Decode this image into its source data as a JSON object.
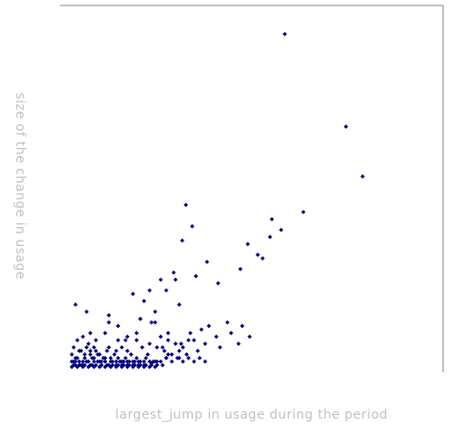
{
  "chart_data": {
    "type": "scatter",
    "title": "",
    "xlabel": "largest_jump in usage during the period",
    "ylabel": "size of the change in usage",
    "xlim": [
      0,
      1
    ],
    "ylim": [
      0,
      1
    ],
    "grid": false,
    "legend": "none",
    "colors": {
      "points": "#00007f",
      "frame": "#808080",
      "axis_text": "#c0c0c0"
    },
    "series": [
      {
        "x": [
          0.585,
          0.75,
          0.795,
          0.635,
          0.55,
          0.545,
          0.512,
          0.485,
          0.318,
          0.335,
          0.308,
          0.285,
          0.265,
          0.25,
          0.22,
          0.205,
          0.195,
          0.235,
          0.11,
          0.05,
          0.02,
          0.175,
          0.29,
          0.405,
          0.465,
          0.375,
          0.345,
          0.525,
          0.575,
          0.3,
          0.235,
          0.225,
          0.195,
          0.185,
          0.185,
          0.16,
          0.155,
          0.27,
          0.305,
          0.325,
          0.3,
          0.27,
          0.265,
          0.255,
          0.24,
          0.225,
          0.215,
          0.16,
          0.145,
          0.135,
          0.135,
          0.13,
          0.11,
          0.1,
          0.11,
          0.1,
          0.09,
          0.08,
          0.075,
          0.07,
          0.065,
          0.06,
          0.06,
          0.055,
          0.05,
          0.045,
          0.04,
          0.035,
          0.03,
          0.025,
          0.02,
          0.015,
          0.015,
          0.01,
          0.02,
          0.025,
          0.03,
          0.035,
          0.04,
          0.045,
          0.05,
          0.055,
          0.06,
          0.065,
          0.07,
          0.075,
          0.08,
          0.085,
          0.09,
          0.095,
          0.1,
          0.105,
          0.11,
          0.115,
          0.12,
          0.125,
          0.13,
          0.135,
          0.14,
          0.145,
          0.15,
          0.155,
          0.16,
          0.165,
          0.17,
          0.175,
          0.18,
          0.185,
          0.19,
          0.195,
          0.2,
          0.205,
          0.21,
          0.22,
          0.23,
          0.24,
          0.25,
          0.26,
          0.27,
          0.28,
          0.29,
          0.3,
          0.31,
          0.32,
          0.33,
          0.34,
          0.35,
          0.36,
          0.37,
          0.38,
          0.4,
          0.41,
          0.43,
          0.44,
          0.46,
          0.47,
          0.49,
          0.015,
          0.03,
          0.045,
          0.06,
          0.075,
          0.09,
          0.105,
          0.12,
          0.135,
          0.15,
          0.165,
          0.18,
          0.195,
          0.21,
          0.225,
          0.24,
          0.255,
          0.01,
          0.02,
          0.04,
          0.05,
          0.07,
          0.085,
          0.1,
          0.115,
          0.13,
          0.145,
          0.16,
          0.175,
          0.19,
          0.205,
          0.22,
          0.235,
          0.25,
          0.265,
          0.28,
          0.295,
          0.31,
          0.325,
          0.34,
          0.355,
          0.37,
          0.01,
          0.025,
          0.04,
          0.055,
          0.07,
          0.085,
          0.1,
          0.115,
          0.13,
          0.145,
          0.16,
          0.175,
          0.19,
          0.205,
          0.22,
          0.235
        ],
        "y": [
          0.94,
          0.68,
          0.54,
          0.44,
          0.42,
          0.37,
          0.32,
          0.35,
          0.46,
          0.4,
          0.36,
          0.27,
          0.22,
          0.25,
          0.22,
          0.19,
          0.14,
          0.13,
          0.13,
          0.16,
          0.18,
          0.21,
          0.25,
          0.24,
          0.28,
          0.3,
          0.26,
          0.31,
          0.39,
          0.18,
          0.16,
          0.13,
          0.14,
          0.1,
          0.08,
          0.09,
          0.08,
          0.1,
          0.07,
          0.08,
          0.05,
          0.04,
          0.03,
          0.06,
          0.02,
          0.015,
          0.04,
          0.05,
          0.06,
          0.08,
          0.12,
          0.05,
          0.06,
          0.1,
          0.15,
          0.03,
          0.02,
          0.04,
          0.08,
          0.06,
          0.03,
          0.05,
          0.1,
          0.07,
          0.02,
          0.04,
          0.09,
          0.01,
          0.05,
          0.08,
          0.03,
          0.02,
          0.06,
          0.04,
          0.01,
          0.03,
          0.02,
          0.05,
          0.01,
          0.03,
          0.06,
          0.02,
          0.04,
          0.01,
          0.03,
          0.05,
          0.02,
          0.04,
          0.01,
          0.03,
          0.02,
          0.05,
          0.01,
          0.03,
          0.02,
          0.04,
          0.01,
          0.03,
          0.02,
          0.01,
          0.02,
          0.03,
          0.01,
          0.02,
          0.04,
          0.01,
          0.02,
          0.03,
          0.01,
          0.02,
          0.06,
          0.01,
          0.03,
          0.07,
          0.02,
          0.06,
          0.09,
          0.05,
          0.08,
          0.04,
          0.07,
          0.03,
          0.06,
          0.04,
          0.1,
          0.08,
          0.05,
          0.11,
          0.07,
          0.12,
          0.09,
          0.06,
          0.13,
          0.1,
          0.07,
          0.12,
          0.09,
          0.01,
          0.01,
          0.01,
          0.01,
          0.01,
          0.01,
          0.01,
          0.01,
          0.01,
          0.01,
          0.01,
          0.01,
          0.01,
          0.01,
          0.01,
          0.01,
          0.01,
          0.02,
          0.02,
          0.02,
          0.02,
          0.02,
          0.02,
          0.02,
          0.02,
          0.02,
          0.02,
          0.02,
          0.02,
          0.02,
          0.02,
          0.02,
          0.02,
          0.02,
          0.03,
          0.02,
          0.03,
          0.02,
          0.03,
          0.02,
          0.03,
          0.02,
          0.005,
          0.005,
          0.005,
          0.005,
          0.005,
          0.005,
          0.005,
          0.005,
          0.005,
          0.005,
          0.005,
          0.005,
          0.005,
          0.005,
          0.005,
          0.005
        ]
      }
    ]
  }
}
